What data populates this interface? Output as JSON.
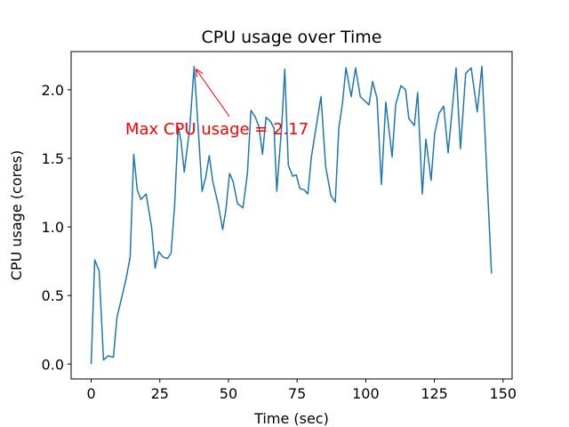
{
  "chart_data": {
    "type": "line",
    "title": "CPU usage over Time",
    "x_label": "Time (sec)",
    "y_label": "CPU usage (cores)",
    "annotation": "Max CPU usage = 2.17",
    "series": [
      {
        "name": "CPU usage",
        "color": "#1f77b4",
        "x": [
          0,
          1.3,
          2.9,
          4.5,
          6.1,
          8.1,
          9.4,
          12.6,
          14.2,
          15.5,
          16.8,
          18.1,
          20,
          22,
          23.3,
          24.6,
          26.2,
          27.8,
          29.1,
          30.4,
          31.7,
          32.7,
          33.9,
          35.9,
          37.5,
          39.1,
          40.4,
          41.7,
          43,
          44.3,
          46.2,
          47.9,
          49.1,
          50.4,
          51.7,
          53.3,
          55.3,
          56.9,
          58.2,
          59.8,
          61.1,
          62.4,
          63.7,
          65.3,
          66.6,
          67.6,
          69.5,
          70.5,
          71.8,
          73.4,
          74.7,
          76,
          77.6,
          78.9,
          80.2,
          82.1,
          83.7,
          85.4,
          87.3,
          88.9,
          90.2,
          91.5,
          92.8,
          94.7,
          96.3,
          98,
          99.6,
          101.2,
          102.5,
          104.1,
          105.7,
          107.3,
          109.6,
          110.9,
          112.8,
          114.5,
          115.7,
          117.7,
          118.9,
          120.6,
          121.9,
          123.8,
          125.1,
          126.7,
          128.4,
          130,
          132.9,
          134.5,
          136.4,
          138.4,
          140.6,
          142.3,
          145.8
        ],
        "values": [
          0,
          0.76,
          0.68,
          0.03,
          0.06,
          0.05,
          0.34,
          0.61,
          0.78,
          1.53,
          1.27,
          1.2,
          1.24,
          1.0,
          0.7,
          0.82,
          0.78,
          0.77,
          0.81,
          1.16,
          1.73,
          1.63,
          1.4,
          1.72,
          2.17,
          1.68,
          1.26,
          1.36,
          1.52,
          1.33,
          1.17,
          0.98,
          1.13,
          1.39,
          1.33,
          1.17,
          1.14,
          1.39,
          1.85,
          1.8,
          1.73,
          1.53,
          1.8,
          1.77,
          1.72,
          1.26,
          1.77,
          2.15,
          1.45,
          1.37,
          1.38,
          1.28,
          1.27,
          1.24,
          1.51,
          1.75,
          1.95,
          1.44,
          1.23,
          1.18,
          1.72,
          1.9,
          2.16,
          1.95,
          2.16,
          1.95,
          1.92,
          1.89,
          2.06,
          1.94,
          1.31,
          1.91,
          1.51,
          1.89,
          2.03,
          2.0,
          1.79,
          1.74,
          1.98,
          1.24,
          1.64,
          1.34,
          1.68,
          1.83,
          1.88,
          1.54,
          2.16,
          1.57,
          2.12,
          2.16,
          1.84,
          2.17,
          0.66
        ]
      }
    ],
    "xlim": [
      -7.3,
      153.3
    ],
    "ylim": [
      -0.1085,
      2.2785
    ],
    "xticks": [
      0,
      25,
      50,
      75,
      100,
      125,
      150
    ],
    "yticks": [
      {
        "value": 0,
        "label": "0.0"
      },
      {
        "value": 0.5,
        "label": "0.5"
      },
      {
        "value": 1,
        "label": "1.0"
      },
      {
        "value": 1.5,
        "label": "1.5"
      },
      {
        "value": 2,
        "label": "2.0"
      }
    ],
    "annotation_color": "red"
  }
}
